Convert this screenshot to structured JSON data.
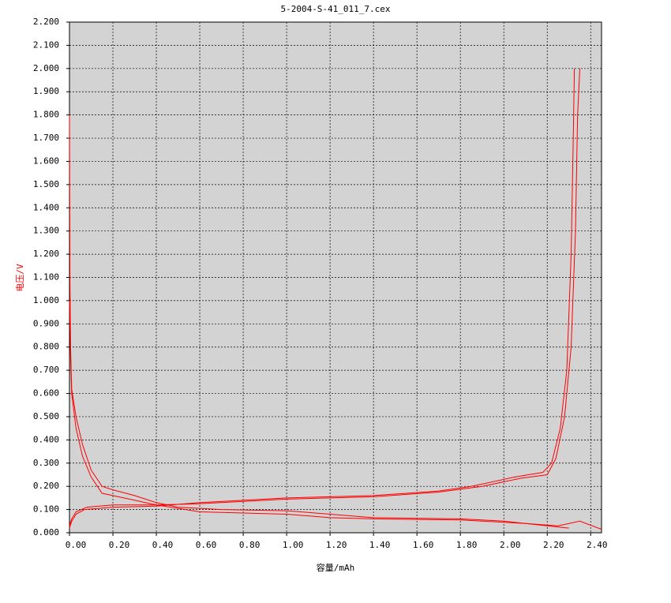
{
  "chart_data": {
    "type": "line",
    "title": "5-2004-S-41_011_7.cex",
    "xlabel": "容量/mAh",
    "ylabel": "电压/V",
    "ylabel_color": "#ff0000",
    "grid": true,
    "xlim": [
      0,
      2.45
    ],
    "ylim": [
      0,
      2.2
    ],
    "xticks": [
      {
        "value": 0,
        "label": "0.00"
      },
      {
        "value": 0.2,
        "label": "0.20"
      },
      {
        "value": 0.4,
        "label": "0.40"
      },
      {
        "value": 0.6,
        "label": "0.60"
      },
      {
        "value": 0.8,
        "label": "0.80"
      },
      {
        "value": 1.0,
        "label": "1.00"
      },
      {
        "value": 1.2,
        "label": "1.20"
      },
      {
        "value": 1.4,
        "label": "1.40"
      },
      {
        "value": 1.6,
        "label": "1.60"
      },
      {
        "value": 1.8,
        "label": "1.80"
      },
      {
        "value": 2.0,
        "label": "2.00"
      },
      {
        "value": 2.2,
        "label": "2.20"
      },
      {
        "value": 2.4,
        "label": "2.40"
      }
    ],
    "yticks": [
      {
        "value": 0,
        "label": "0.000"
      },
      {
        "value": 0.1,
        "label": "0.100"
      },
      {
        "value": 0.2,
        "label": "0.200"
      },
      {
        "value": 0.3,
        "label": "0.300"
      },
      {
        "value": 0.4,
        "label": "0.400"
      },
      {
        "value": 0.5,
        "label": "0.500"
      },
      {
        "value": 0.6,
        "label": "0.600"
      },
      {
        "value": 0.7,
        "label": "0.700"
      },
      {
        "value": 0.8,
        "label": "0.800"
      },
      {
        "value": 0.9,
        "label": "0.900"
      },
      {
        "value": 1.0,
        "label": "1.000"
      },
      {
        "value": 1.1,
        "label": "1.100"
      },
      {
        "value": 1.2,
        "label": "1.200"
      },
      {
        "value": 1.3,
        "label": "1.300"
      },
      {
        "value": 1.4,
        "label": "1.400"
      },
      {
        "value": 1.5,
        "label": "1.500"
      },
      {
        "value": 1.6,
        "label": "1.600"
      },
      {
        "value": 1.7,
        "label": "1.700"
      },
      {
        "value": 1.8,
        "label": "1.800"
      },
      {
        "value": 1.9,
        "label": "1.900"
      },
      {
        "value": 2.0,
        "label": "2.000"
      },
      {
        "value": 2.1,
        "label": "2.100"
      },
      {
        "value": 2.2,
        "label": "2.200"
      }
    ],
    "series": [
      {
        "color": "#ff0000",
        "x": [
          0,
          0.002,
          0.005,
          0.01,
          0.03,
          0.06,
          0.1,
          0.15,
          0.2,
          0.3,
          0.4,
          0.5,
          0.7,
          1.0,
          1.2,
          1.4,
          1.8,
          2.0,
          2.1,
          2.2,
          2.3
        ],
        "values": [
          1.8,
          1.08,
          0.8,
          0.62,
          0.5,
          0.38,
          0.27,
          0.2,
          0.185,
          0.16,
          0.13,
          0.11,
          0.1,
          0.095,
          0.08,
          0.065,
          0.06,
          0.05,
          0.04,
          0.03,
          0.02
        ]
      },
      {
        "color": "#ff0000",
        "x": [
          0,
          0.005,
          0.01,
          0.03,
          0.06,
          0.1,
          0.15,
          0.2,
          0.3,
          0.4,
          0.6,
          0.8,
          1.0,
          1.2,
          1.4,
          1.8,
          2.0,
          2.1,
          2.25,
          2.35,
          2.45
        ],
        "values": [
          1.0,
          0.75,
          0.6,
          0.45,
          0.33,
          0.24,
          0.17,
          0.16,
          0.14,
          0.12,
          0.09,
          0.085,
          0.08,
          0.065,
          0.06,
          0.055,
          0.045,
          0.04,
          0.03,
          0.05,
          0.015
        ]
      },
      {
        "color": "#ff0000",
        "x": [
          0,
          0.01,
          0.03,
          0.07,
          0.2,
          0.4,
          0.6,
          1.0,
          1.4,
          1.7,
          1.85,
          2.05,
          2.18,
          2.22,
          2.26,
          2.29,
          2.31,
          2.32,
          2.325
        ],
        "values": [
          0.02,
          0.05,
          0.08,
          0.1,
          0.11,
          0.115,
          0.13,
          0.15,
          0.16,
          0.18,
          0.2,
          0.24,
          0.26,
          0.3,
          0.45,
          0.7,
          1.2,
          1.7,
          2.0
        ]
      },
      {
        "color": "#ff0000",
        "x": [
          0,
          0.01,
          0.03,
          0.08,
          0.2,
          0.4,
          0.6,
          1.0,
          1.4,
          1.7,
          1.9,
          2.08,
          2.2,
          2.24,
          2.28,
          2.31,
          2.33,
          2.34,
          2.35
        ],
        "values": [
          0.03,
          0.06,
          0.09,
          0.11,
          0.12,
          0.12,
          0.125,
          0.145,
          0.155,
          0.175,
          0.2,
          0.235,
          0.25,
          0.32,
          0.5,
          0.8,
          1.3,
          1.8,
          2.0
        ]
      }
    ]
  }
}
